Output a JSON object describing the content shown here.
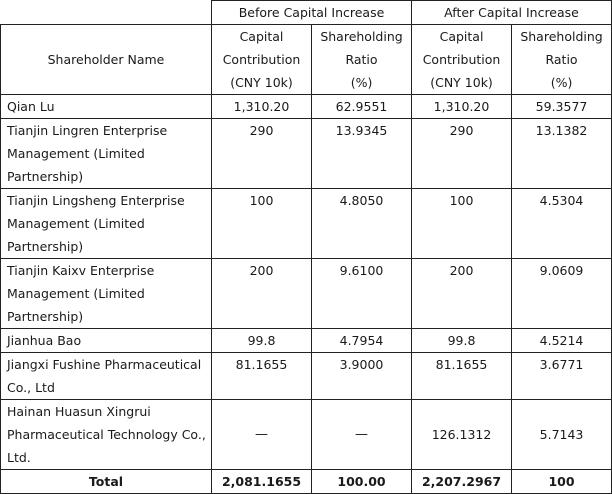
{
  "headers": {
    "before": "Before Capital Increase",
    "after": "After Capital Increase",
    "shareholder_name": "Shareholder Name",
    "capital_contribution": [
      "Capital",
      "Contribution",
      "(CNY 10k)"
    ],
    "shareholding_ratio": [
      "Shareholding",
      "Ratio",
      "(%)"
    ]
  },
  "rows": [
    {
      "name": "Qian Lu",
      "before_capital": "1,310.20",
      "before_ratio": "62.9551",
      "after_capital": "1,310.20",
      "after_ratio": "59.3577"
    },
    {
      "name": "Tianjin Lingren Enterprise Management (Limited Partnership)",
      "before_capital": "290",
      "before_ratio": "13.9345",
      "after_capital": "290",
      "after_ratio": "13.1382"
    },
    {
      "name": "Tianjin Lingsheng Enterprise Management (Limited Partnership)",
      "before_capital": "100",
      "before_ratio": "4.8050",
      "after_capital": "100",
      "after_ratio": "4.5304"
    },
    {
      "name": "Tianjin Kaixv Enterprise Management (Limited Partnership)",
      "before_capital": "200",
      "before_ratio": "9.6100",
      "after_capital": "200",
      "after_ratio": "9.0609"
    },
    {
      "name": "Jianhua Bao",
      "before_capital": "99.8",
      "before_ratio": "4.7954",
      "after_capital": "99.8",
      "after_ratio": "4.5214"
    },
    {
      "name": "Jiangxi Fushine Pharmaceutical Co., Ltd",
      "before_capital": "81.1655",
      "before_ratio": "3.9000",
      "after_capital": "81.1655",
      "after_ratio": "3.6771"
    },
    {
      "name": "Hainan Huasun Xingrui Pharmaceutical Technology Co., Ltd.",
      "before_capital": "—",
      "before_ratio": "—",
      "after_capital": "126.1312",
      "after_ratio": "5.7143"
    }
  ],
  "total": {
    "label": "Total",
    "before_capital": "2,081.1655",
    "before_ratio": "100.00",
    "after_capital": "2,207.2967",
    "after_ratio": "100"
  }
}
